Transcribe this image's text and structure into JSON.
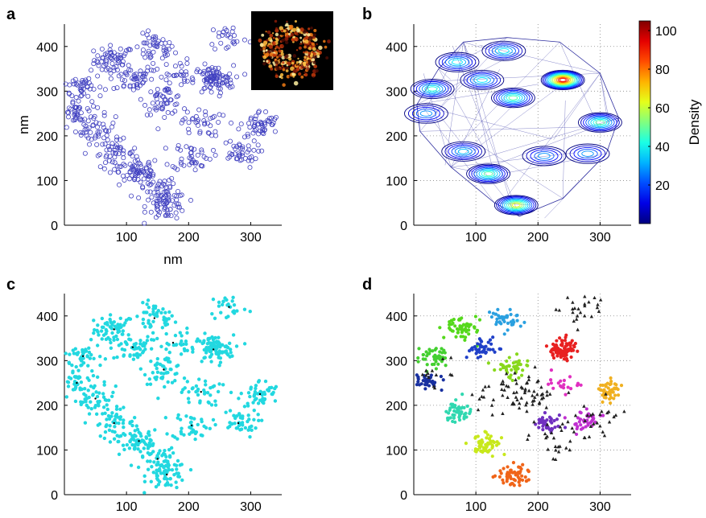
{
  "chart_data": [
    {
      "panel": "a",
      "type": "scatter",
      "marker": "open-circle",
      "color": "#4040c0",
      "xlabel": "nm",
      "ylabel": "nm",
      "xlim": [
        0,
        350
      ],
      "ylim": [
        0,
        450
      ],
      "xticks": [
        100,
        200,
        300
      ],
      "yticks": [
        0,
        100,
        200,
        300,
        400
      ],
      "grid": false,
      "inset": "fire-colormap super-resolution image of the cluster",
      "clusters": [
        {
          "center": [
            80,
            370
          ],
          "n": 60
        },
        {
          "center": [
            145,
            395
          ],
          "n": 45
        },
        {
          "center": [
            110,
            330
          ],
          "n": 45
        },
        {
          "center": [
            30,
            310
          ],
          "n": 45
        },
        {
          "center": [
            20,
            250
          ],
          "n": 40
        },
        {
          "center": [
            50,
            215
          ],
          "n": 40
        },
        {
          "center": [
            80,
            160
          ],
          "n": 50
        },
        {
          "center": [
            120,
            120
          ],
          "n": 60
        },
        {
          "center": [
            150,
            80
          ],
          "n": 40
        },
        {
          "center": [
            165,
            45
          ],
          "n": 60
        },
        {
          "center": [
            160,
            280
          ],
          "n": 50
        },
        {
          "center": [
            240,
            325
          ],
          "n": 90
        },
        {
          "center": [
            265,
            420
          ],
          "n": 25
        },
        {
          "center": [
            315,
            225
          ],
          "n": 50
        },
        {
          "center": [
            205,
            155
          ],
          "n": 40
        },
        {
          "center": [
            280,
            160
          ],
          "n": 40
        },
        {
          "center": [
            220,
            230
          ],
          "n": 35
        },
        {
          "center": [
            175,
            340
          ],
          "n": 30
        }
      ]
    },
    {
      "panel": "b",
      "type": "contour",
      "xlim": [
        0,
        350
      ],
      "ylim": [
        0,
        450
      ],
      "xticks": [
        100,
        200,
        300
      ],
      "yticks": [
        0,
        100,
        200,
        300,
        400
      ],
      "grid": true,
      "colorbar": {
        "label": "Density",
        "min": 0,
        "max": 105,
        "ticks": [
          20,
          40,
          60,
          80,
          100
        ],
        "colormap": "jet"
      },
      "peaks": [
        {
          "x": 240,
          "y": 325,
          "density": 100
        },
        {
          "x": 165,
          "y": 45,
          "density": 70
        },
        {
          "x": 70,
          "y": 365,
          "density": 45
        },
        {
          "x": 145,
          "y": 390,
          "density": 45
        },
        {
          "x": 30,
          "y": 305,
          "density": 50
        },
        {
          "x": 110,
          "y": 325,
          "density": 45
        },
        {
          "x": 160,
          "y": 285,
          "density": 55
        },
        {
          "x": 300,
          "y": 230,
          "density": 55
        },
        {
          "x": 80,
          "y": 165,
          "density": 40
        },
        {
          "x": 120,
          "y": 115,
          "density": 55
        },
        {
          "x": 210,
          "y": 155,
          "density": 35
        },
        {
          "x": 280,
          "y": 160,
          "density": 35
        },
        {
          "x": 20,
          "y": 250,
          "density": 35
        }
      ]
    },
    {
      "panel": "c",
      "type": "scatter",
      "marker": "dot",
      "color": "#22d8e0",
      "xlim": [
        0,
        350
      ],
      "ylim": [
        0,
        450
      ],
      "xticks": [
        100,
        200,
        300
      ],
      "yticks": [
        0,
        100,
        200,
        300,
        400
      ],
      "grid": false,
      "same_points_as": "a"
    },
    {
      "panel": "d",
      "type": "scatter",
      "marker": "dot-and-triangle",
      "xlim": [
        0,
        350
      ],
      "ylim": [
        0,
        450
      ],
      "xticks": [
        100,
        200,
        300
      ],
      "yticks": [
        0,
        100,
        200,
        300,
        400
      ],
      "grid": true,
      "noise_color": "#222222",
      "clusters": [
        {
          "center": [
            80,
            370
          ],
          "n": 55,
          "color": "#55d81c"
        },
        {
          "center": [
            145,
            392
          ],
          "n": 40,
          "color": "#2aa0e0"
        },
        {
          "center": [
            110,
            325
          ],
          "n": 40,
          "color": "#2040c8"
        },
        {
          "center": [
            30,
            308
          ],
          "n": 45,
          "color": "#44d030"
        },
        {
          "center": [
            22,
            250
          ],
          "n": 40,
          "color": "#1830a0"
        },
        {
          "center": [
            70,
            185
          ],
          "n": 50,
          "color": "#30d8b0"
        },
        {
          "center": [
            115,
            115
          ],
          "n": 55,
          "color": "#c8e81c"
        },
        {
          "center": [
            160,
            45
          ],
          "n": 60,
          "color": "#f06418"
        },
        {
          "center": [
            160,
            285
          ],
          "n": 45,
          "color": "#88d81c"
        },
        {
          "center": [
            240,
            325
          ],
          "n": 85,
          "color": "#e82020"
        },
        {
          "center": [
            315,
            232
          ],
          "n": 45,
          "color": "#f0b020"
        },
        {
          "center": [
            212,
            158
          ],
          "n": 40,
          "color": "#7030c0"
        },
        {
          "center": [
            275,
            165
          ],
          "n": 40,
          "color": "#c030d0"
        },
        {
          "center": [
            240,
            245
          ],
          "n": 20,
          "color": "#e030c0"
        }
      ],
      "noise": [
        {
          "center": [
            265,
            420
          ],
          "n": 25
        },
        {
          "center": [
            190,
            220
          ],
          "n": 45
        },
        {
          "center": [
            230,
            130
          ],
          "n": 25
        },
        {
          "center": [
            300,
            170
          ],
          "n": 25
        },
        {
          "center": [
            140,
            235
          ],
          "n": 25
        },
        {
          "center": [
            25,
            280
          ],
          "n": 15
        }
      ]
    }
  ]
}
